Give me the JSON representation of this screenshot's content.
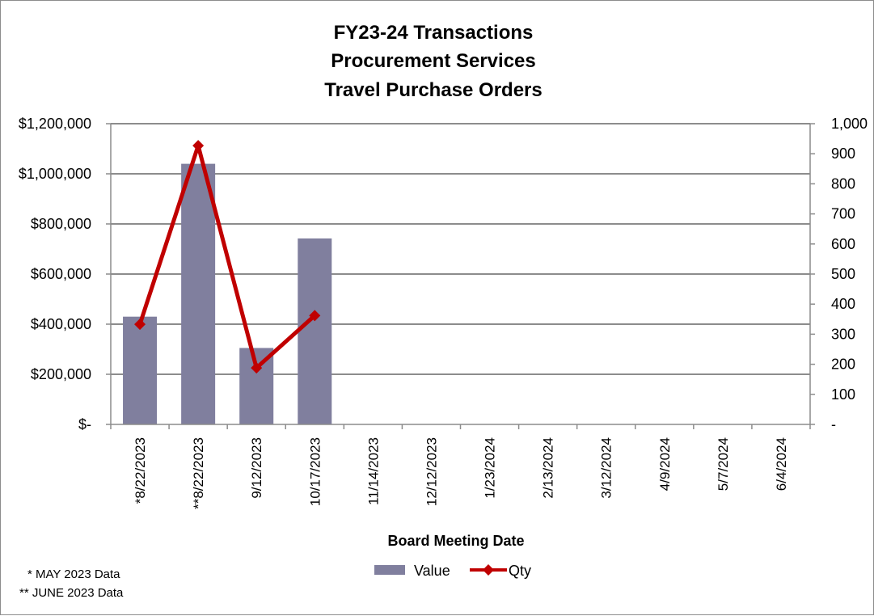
{
  "chart_data": {
    "type": "bar+line",
    "title_lines": [
      "FY23-24 Transactions",
      "Procurement Services",
      "Travel Purchase Orders"
    ],
    "categories": [
      "*8/22/2023",
      "**8/22/2023",
      "9/12/2023",
      "10/17/2023",
      "11/14/2023",
      "12/12/2023",
      "1/23/2024",
      "2/13/2024",
      "3/12/2024",
      "4/9/2024",
      "5/7/2024",
      "6/4/2024"
    ],
    "xlabel": "Board Meeting Date",
    "series": [
      {
        "name": "Value",
        "type": "bar",
        "axis": "left",
        "color": "#807f9e",
        "values": [
          430000,
          1040000,
          305000,
          742000,
          null,
          null,
          null,
          null,
          null,
          null,
          null,
          null
        ]
      },
      {
        "name": "Qty",
        "type": "line",
        "axis": "right",
        "color": "#c00000",
        "values": [
          333,
          927,
          188,
          362,
          null,
          null,
          null,
          null,
          null,
          null,
          null,
          null
        ]
      }
    ],
    "y_left": {
      "ylim": [
        0,
        1200000
      ],
      "ticks": [
        0,
        200000,
        400000,
        600000,
        800000,
        1000000,
        1200000
      ],
      "tick_labels": [
        "$-",
        "$200,000",
        "$400,000",
        "$600,000",
        "$800,000",
        "$1,000,000",
        "$1,200,000"
      ]
    },
    "y_right": {
      "ylim": [
        0,
        1000
      ],
      "ticks": [
        0,
        100,
        200,
        300,
        400,
        500,
        600,
        700,
        800,
        900,
        1000
      ],
      "tick_labels": [
        "-",
        "100",
        "200",
        "300",
        "400",
        "500",
        "600",
        "700",
        "800",
        "900",
        "1,000"
      ]
    },
    "grid": true,
    "legend_position": "bottom"
  },
  "notes": [
    "*  MAY 2023 Data",
    "** JUNE 2023 Data"
  ]
}
